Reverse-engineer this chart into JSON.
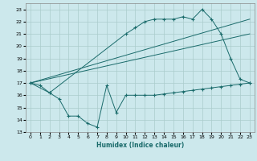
{
  "xlabel": "Humidex (Indice chaleur)",
  "bg_color": "#cce8ec",
  "grid_color": "#aacccc",
  "line_color": "#1a6b6b",
  "xlim": [
    -0.5,
    23.5
  ],
  "ylim": [
    13,
    23.5
  ],
  "yticks": [
    13,
    14,
    15,
    16,
    17,
    18,
    19,
    20,
    21,
    22,
    23
  ],
  "xticks": [
    0,
    1,
    2,
    3,
    4,
    5,
    6,
    7,
    8,
    9,
    10,
    11,
    12,
    13,
    14,
    15,
    16,
    17,
    18,
    19,
    20,
    21,
    22,
    23
  ],
  "series": [
    {
      "x": [
        0,
        1,
        2,
        10,
        11,
        12,
        13,
        14,
        15,
        16,
        17,
        18,
        19,
        20,
        21,
        22,
        23
      ],
      "y": [
        17.0,
        16.8,
        16.2,
        21.0,
        21.5,
        22.0,
        22.2,
        22.2,
        22.2,
        22.4,
        22.2,
        23.0,
        22.2,
        21.0,
        19.0,
        17.3,
        17.0
      ],
      "marker": "+"
    },
    {
      "x": [
        0,
        23
      ],
      "y": [
        17.0,
        22.2
      ],
      "marker": null
    },
    {
      "x": [
        0,
        23
      ],
      "y": [
        17.0,
        21.0
      ],
      "marker": null
    },
    {
      "x": [
        0,
        2,
        3,
        4,
        5,
        6,
        7,
        8,
        9,
        10,
        11,
        12,
        13,
        14,
        15,
        16,
        17,
        18,
        19,
        20,
        21,
        22,
        23
      ],
      "y": [
        17.0,
        16.2,
        15.7,
        14.3,
        14.3,
        13.7,
        13.4,
        16.8,
        14.6,
        16.0,
        16.0,
        16.0,
        16.0,
        16.1,
        16.2,
        16.3,
        16.4,
        16.5,
        16.6,
        16.7,
        16.8,
        16.9,
        17.0
      ],
      "marker": "+"
    }
  ]
}
